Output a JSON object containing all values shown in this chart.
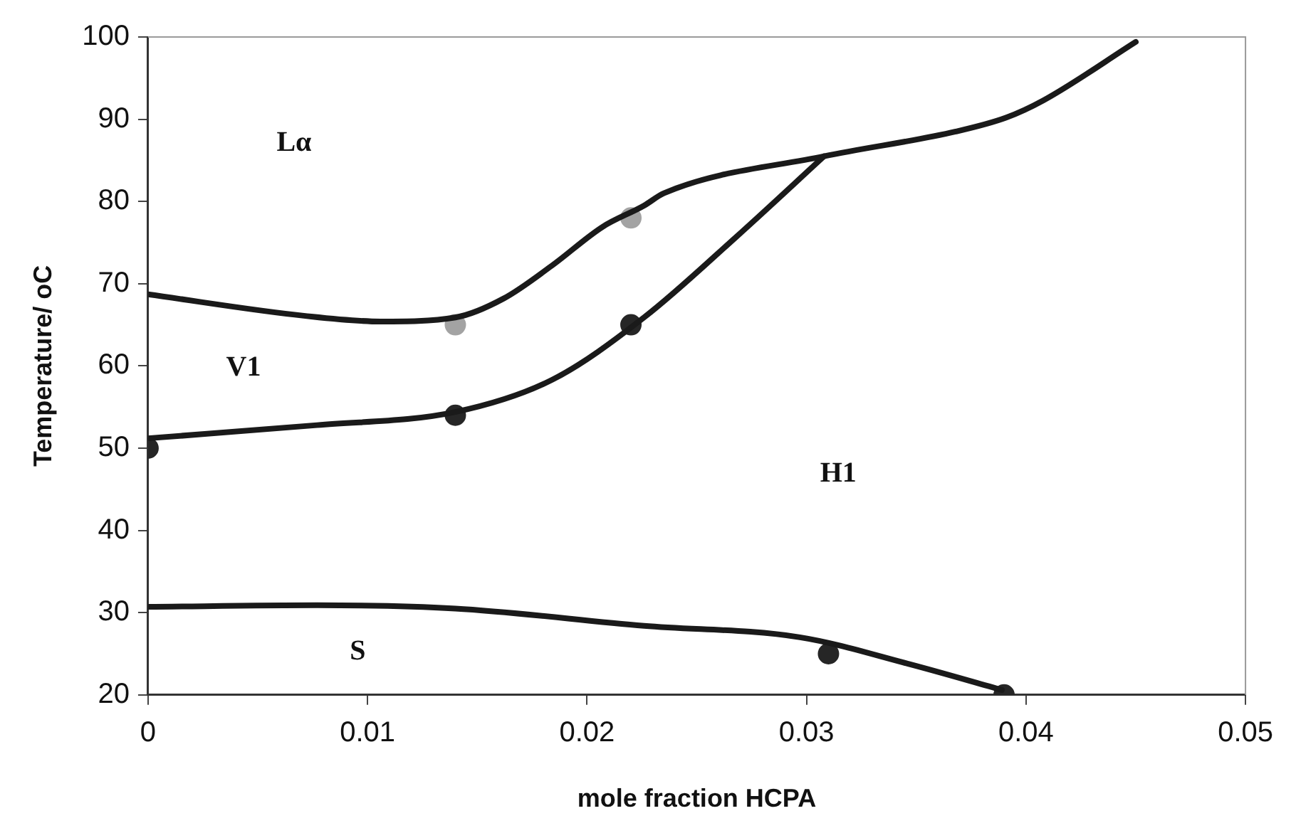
{
  "chart_data": {
    "type": "line",
    "xlabel": "mole fraction HCPA",
    "ylabel": "Temperature/ oC",
    "xlim": [
      0,
      0.05
    ],
    "xticks": [
      0,
      0.01,
      0.02,
      0.03,
      0.04,
      0.05
    ],
    "ylim": [
      20,
      100
    ],
    "yticks": [
      20,
      30,
      40,
      50,
      60,
      70,
      80,
      90,
      100
    ],
    "grid": false,
    "legend": false,
    "series": [
      {
        "marker": "none",
        "color": "#1a1a1a",
        "x": [
          0,
          0.0071,
          0.0106,
          0.014,
          0.0162,
          0.0184,
          0.0207,
          0.0226,
          0.0235,
          0.0308,
          0.0368,
          0.0391,
          0.0408,
          0.045
        ],
        "values": [
          68.7,
          66.1,
          65.4,
          65.9,
          68.2,
          72.2,
          76.9,
          79.5,
          81.0,
          85.5,
          88.5,
          90.2,
          92.3,
          99.4
        ]
      },
      {
        "marker": "none",
        "color": "#1a1a1a",
        "x": [
          0,
          0.0077,
          0.014,
          0.0184,
          0.0226,
          0.0268,
          0.0308
        ],
        "values": [
          51.2,
          52.8,
          54.4,
          58.3,
          65.9,
          75.7,
          85.5
        ]
      },
      {
        "marker": "none",
        "color": "#1a1a1a",
        "x": [
          0,
          0.0077,
          0.014,
          0.0226,
          0.0297,
          0.0346,
          0.0389
        ],
        "values": [
          30.7,
          30.9,
          30.5,
          28.4,
          27.0,
          23.8,
          20.6
        ]
      },
      {
        "type": "scatter",
        "marker": "circle",
        "color": "#262626",
        "x": [
          0,
          0.014,
          0.022,
          0.031,
          0.039
        ],
        "values": [
          50,
          54,
          65,
          25,
          20
        ]
      },
      {
        "type": "scatter",
        "marker": "circle",
        "color": "#a3a3a3",
        "x": [
          0.014,
          0.022
        ],
        "values": [
          65,
          78
        ]
      }
    ],
    "annotations": [
      "Lα",
      "V1",
      "H1",
      "S"
    ]
  }
}
